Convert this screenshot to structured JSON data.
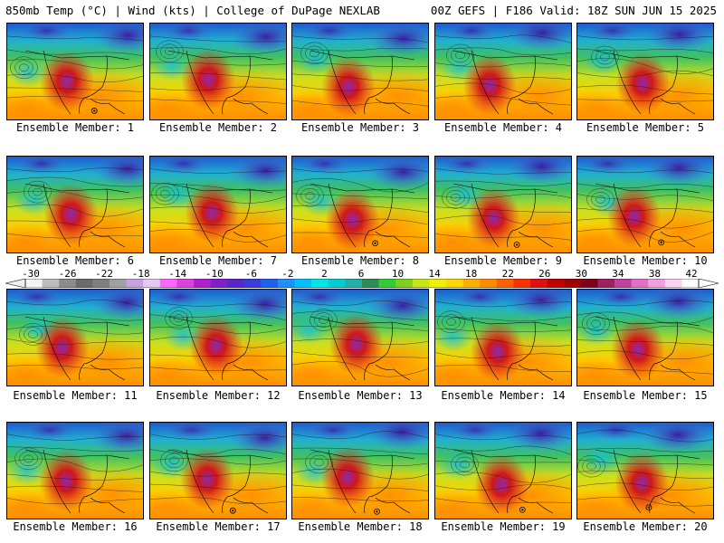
{
  "header": {
    "left": "850mb Temp (°C) | Wind (kts) | College of DuPage NEXLAB",
    "right": "00Z GEFS | F186 Valid: 18Z SUN JUN 15 2025"
  },
  "members": [
    "Ensemble Member: 1",
    "Ensemble Member: 2",
    "Ensemble Member: 3",
    "Ensemble Member: 4",
    "Ensemble Member: 5",
    "Ensemble Member: 6",
    "Ensemble Member: 7",
    "Ensemble Member: 8",
    "Ensemble Member: 9",
    "Ensemble Member: 10",
    "Ensemble Member: 11",
    "Ensemble Member: 12",
    "Ensemble Member: 13",
    "Ensemble Member: 14",
    "Ensemble Member: 15",
    "Ensemble Member: 16",
    "Ensemble Member: 17",
    "Ensemble Member: 18",
    "Ensemble Member: 19",
    "Ensemble Member: 20"
  ],
  "colorbar": {
    "labels": [
      "-30",
      "-26",
      "-22",
      "-18",
      "-14",
      "-10",
      "-6",
      "-2",
      "2",
      "6",
      "10",
      "14",
      "18",
      "22",
      "26",
      "30",
      "34",
      "38",
      "42"
    ],
    "colors": [
      "#f5f5f5",
      "#bdbdbd",
      "#8c8c8c",
      "#6b6b6b",
      "#7f7f7f",
      "#a0a0a0",
      "#c8a0e6",
      "#e6c8f0",
      "#ff66ff",
      "#e040e0",
      "#b020d0",
      "#8020c8",
      "#5a28c8",
      "#3c3cdc",
      "#2060f0",
      "#1e90ff",
      "#00bfff",
      "#00e5e5",
      "#00ced1",
      "#20b2aa",
      "#2e8b57",
      "#32cd32",
      "#7fd01e",
      "#c8e614",
      "#f0f000",
      "#ffd700",
      "#ffb000",
      "#ff8c00",
      "#ff6000",
      "#ff3000",
      "#e01010",
      "#c00000",
      "#a00000",
      "#800020",
      "#a02060",
      "#c040a0",
      "#e070c8",
      "#f0a0e0",
      "#ffd0f0",
      "#ffffff"
    ]
  },
  "colors": {
    "cold": "#3c1ea0",
    "cool": "#1ec8e6",
    "mild": "#5ac85a",
    "warm": "#ffb000",
    "hot": "#e02828",
    "extreme": "#8c28b4"
  }
}
